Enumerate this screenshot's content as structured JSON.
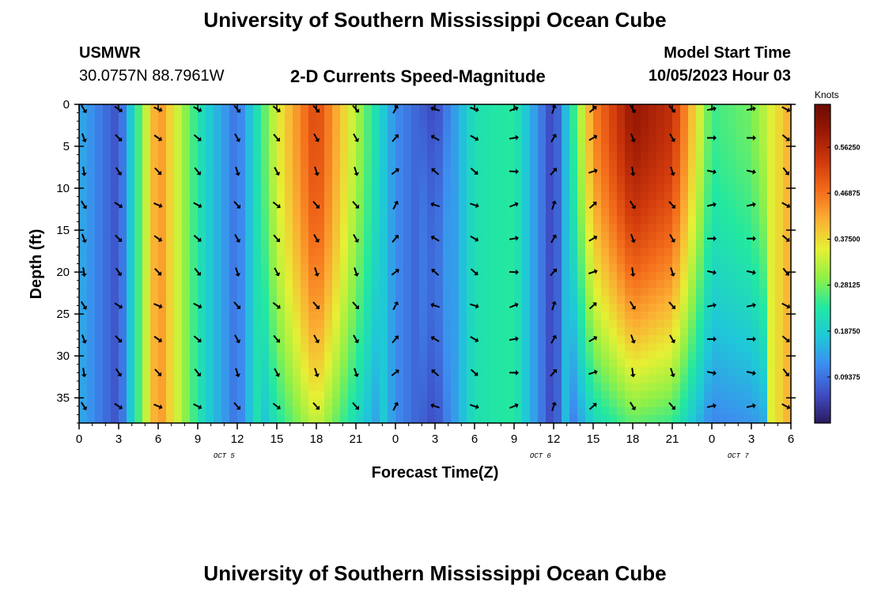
{
  "header": {
    "title": "University of Southern Mississippi Ocean Cube",
    "station": "USMWR",
    "coords": "30.0757N  88.7961W",
    "subtitle": "2-D Currents Speed-Magnitude",
    "model_start_label": "Model Start Time",
    "model_start_value": "10/05/2023 Hour 03"
  },
  "footer": {
    "title": "University of Southern Mississippi Ocean Cube"
  },
  "chart_data": {
    "type": "heatmap",
    "title": "2-D Currents Speed-Magnitude",
    "xlabel": "Forecast Time(Z)",
    "ylabel": "Depth (ft)",
    "x_hours_range": [
      0,
      54
    ],
    "y_range": [
      0,
      38
    ],
    "x_tick_labels": [
      "0",
      "3",
      "6",
      "9",
      "12",
      "15",
      "18",
      "21",
      "0",
      "3",
      "6",
      "9",
      "12",
      "15",
      "18",
      "21",
      "0",
      "3",
      "6"
    ],
    "y_ticks": [
      0,
      5,
      10,
      15,
      20,
      25,
      30,
      35
    ],
    "date_labels": [
      {
        "hour": 11,
        "text": "OCT 5"
      },
      {
        "hour": 35,
        "text": "OCT 6"
      },
      {
        "hour": 50,
        "text": "OCT 7"
      }
    ],
    "colorbar": {
      "unit": "Knots",
      "ticks": [
        "0.56250",
        "0.46875",
        "0.37500",
        "0.28125",
        "0.18750",
        "0.09375"
      ],
      "range": [
        0,
        0.65
      ],
      "colors": [
        "#2b1a5e",
        "#3f4ec4",
        "#3d8cf0",
        "#1fc8d8",
        "#22e8a0",
        "#8ef048",
        "#e6f034",
        "#fbb034",
        "#f46d1b",
        "#d13a0c",
        "#9c1a05",
        "#6a0a02"
      ]
    },
    "speed_columns": [
      {
        "hour": 0,
        "speed": 0.15
      },
      {
        "hour": 3,
        "speed": 0.06
      },
      {
        "hour": 6,
        "speed": 0.45
      },
      {
        "hour": 8,
        "speed": 0.3
      },
      {
        "hour": 9.5,
        "speed": 0.2
      },
      {
        "hour": 12,
        "speed": 0.09
      },
      {
        "hour": 15,
        "speed": 0.35
      },
      {
        "hour": 18,
        "speed": 0.52
      },
      {
        "hour": 21,
        "speed": 0.32
      },
      {
        "hour": 24,
        "speed": 0.12
      },
      {
        "hour": 27,
        "speed": 0.05
      },
      {
        "hour": 30,
        "speed": 0.22
      },
      {
        "hour": 33,
        "speed": 0.24
      },
      {
        "hour": 36,
        "speed": 0.04
      },
      {
        "hour": 39,
        "speed": 0.45
      },
      {
        "hour": 42,
        "speed": 0.6
      },
      {
        "hour": 45,
        "speed": 0.55
      },
      {
        "hour": 48,
        "speed": 0.25
      },
      {
        "hour": 51,
        "speed": 0.28
      },
      {
        "hour": 54,
        "speed": 0.42
      }
    ],
    "arrow_hours": [
      0,
      3,
      6,
      9,
      12,
      15,
      18,
      21,
      24,
      27,
      30,
      33,
      36,
      39,
      42,
      45,
      48,
      51,
      54
    ],
    "arrow_depths": [
      0,
      4,
      8,
      12,
      16,
      20,
      24,
      28,
      32,
      36
    ],
    "arrow_direction_columns_deg": [
      160,
      135,
      125,
      130,
      150,
      140,
      150,
      150,
      40,
      300,
      120,
      80,
      30,
      60,
      160,
      150,
      90,
      90,
      130
    ]
  }
}
